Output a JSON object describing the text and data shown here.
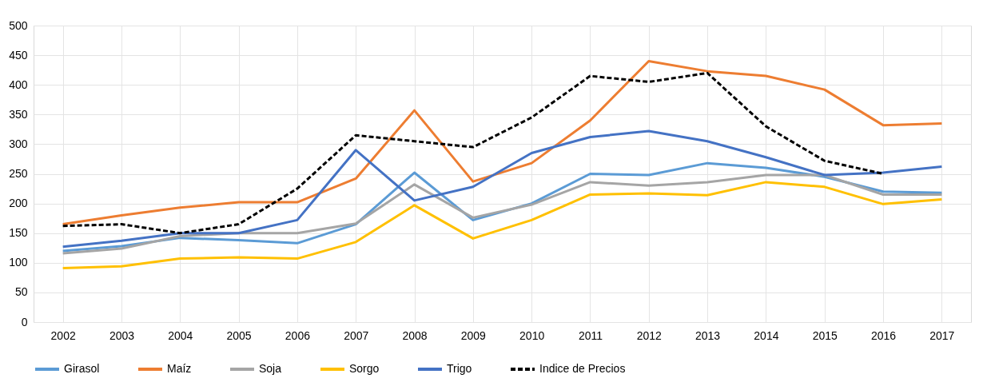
{
  "chart_data": {
    "type": "line",
    "categories": [
      "2002",
      "2003",
      "2004",
      "2005",
      "2006",
      "2007",
      "2008",
      "2009",
      "2010",
      "2011",
      "2012",
      "2013",
      "2014",
      "2015",
      "2016",
      "2017"
    ],
    "series": [
      {
        "name": "Girasol",
        "color": "#5b9bd5",
        "values": [
          120,
          128,
          142,
          138,
          133,
          165,
          252,
          172,
          200,
          250,
          248,
          268,
          260,
          245,
          220,
          218
        ]
      },
      {
        "name": "Maíz",
        "color": "#ed7d31",
        "values": [
          165,
          180,
          193,
          202,
          202,
          242,
          357,
          237,
          268,
          340,
          440,
          423,
          415,
          392,
          332,
          335
        ]
      },
      {
        "name": "Soja",
        "color": "#a5a5a5",
        "values": [
          116,
          124,
          145,
          150,
          150,
          166,
          232,
          176,
          198,
          236,
          230,
          236,
          248,
          248,
          215,
          215
        ]
      },
      {
        "name": "Sorgo",
        "color": "#ffc000",
        "values": [
          91,
          94,
          107,
          109,
          107,
          135,
          197,
          141,
          172,
          215,
          217,
          214,
          236,
          228,
          199,
          207
        ]
      },
      {
        "name": "Trigo",
        "color": "#4472c4",
        "values": [
          127,
          137,
          150,
          150,
          172,
          290,
          205,
          228,
          285,
          312,
          322,
          305,
          278,
          248,
          252,
          262
        ]
      },
      {
        "name": "Indice de Precios",
        "color": "#000000",
        "line_style": "dashed",
        "values": [
          162,
          165,
          150,
          165,
          225,
          315,
          305,
          295,
          345,
          415,
          405,
          420,
          330,
          272,
          250,
          null
        ]
      }
    ],
    "ylim": [
      0,
      500
    ],
    "yticks": [
      0,
      50,
      100,
      150,
      200,
      250,
      300,
      350,
      400,
      450,
      500
    ],
    "grid": true,
    "legend": "bottom",
    "line_style": "solid",
    "marker": "none"
  }
}
